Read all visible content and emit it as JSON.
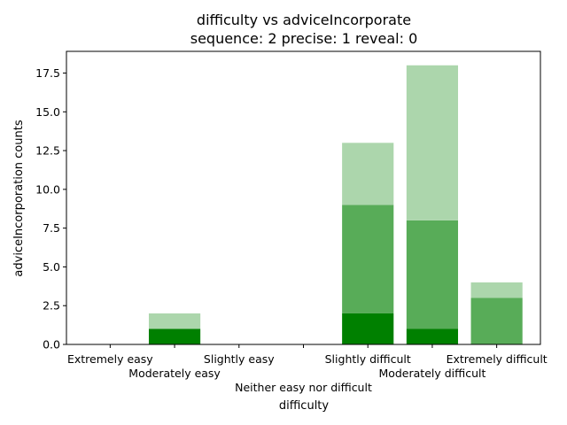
{
  "chart_data": {
    "type": "bar",
    "stacked": true,
    "title": "difficulty vs adviceIncorporate",
    "subtitle": "sequence: 2  precise: 1  reveal: 0",
    "xlabel": "difficulty",
    "ylabel": "adviceIncorporation counts",
    "ylim": [
      0,
      18.9
    ],
    "yticks": [
      "0.0",
      "2.5",
      "5.0",
      "7.5",
      "10.0",
      "12.5",
      "15.0",
      "17.5"
    ],
    "ytick_values": [
      0,
      2.5,
      5,
      7.5,
      10,
      12.5,
      15,
      17.5
    ],
    "categories": [
      "Extremely easy",
      "Moderately easy",
      "Slightly easy",
      "Neither easy nor difficult",
      "Slightly difficult",
      "Moderately difficult",
      "Extremely difficult"
    ],
    "grid": false,
    "legend": "none",
    "series": [
      {
        "values": [
          0,
          1,
          0,
          0,
          2,
          1,
          0
        ],
        "color": "#008000"
      },
      {
        "values": [
          0,
          0,
          0,
          0,
          7,
          7,
          3
        ],
        "color": "#58ac58"
      },
      {
        "values": [
          0,
          1,
          0,
          0,
          4,
          10,
          1
        ],
        "color": "#acd6ac"
      }
    ]
  }
}
